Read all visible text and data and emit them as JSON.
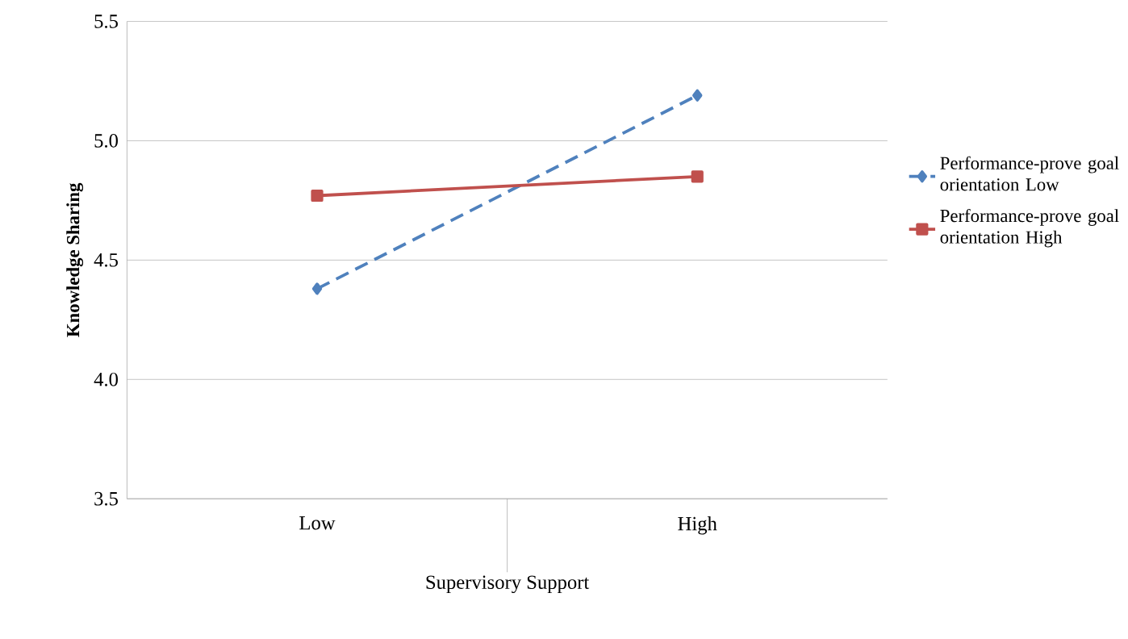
{
  "chart_data": {
    "type": "line",
    "xlabel": "Supervisory Support",
    "ylabel": "Knowledge Sharing",
    "categories": [
      "Low",
      "High"
    ],
    "series": [
      {
        "name": "Performance-prove goal orientation Low",
        "color": "#4f81bd",
        "values": [
          4.38,
          5.19
        ],
        "marker": "diamond",
        "line_style": "dashed"
      },
      {
        "name": "Performance-prove goal orientation High",
        "color": "#c0504d",
        "values": [
          4.77,
          4.85
        ],
        "marker": "square",
        "line_style": "solid"
      }
    ],
    "ylim": [
      3.5,
      5.5
    ],
    "yticks": [
      {
        "value": 3.5,
        "label": "3.5"
      },
      {
        "value": 4.0,
        "label": "4.0"
      },
      {
        "value": 4.5,
        "label": "4.5"
      },
      {
        "value": 5.0,
        "label": "5.0"
      },
      {
        "value": 5.5,
        "label": "5.5"
      }
    ],
    "grid": "y",
    "legend": "right"
  }
}
